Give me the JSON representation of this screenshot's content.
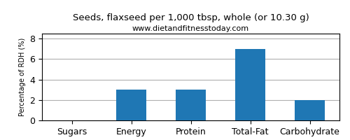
{
  "chart_data": {
    "type": "bar",
    "title": "Seeds, flaxseed per 1,000 tbsp, whole (or 10.30 g)",
    "subtitle": "www.dietandfitnesstoday.com",
    "categories": [
      "Sugars",
      "Energy",
      "Protein",
      "Total-Fat",
      "Carbohydrate"
    ],
    "values": [
      0,
      3,
      3,
      7,
      2
    ],
    "ylabel": "Percentage of RDH (%)",
    "ylim": [
      0,
      8.5
    ],
    "yticks": [
      0,
      2,
      4,
      6,
      8
    ],
    "grid": true
  }
}
